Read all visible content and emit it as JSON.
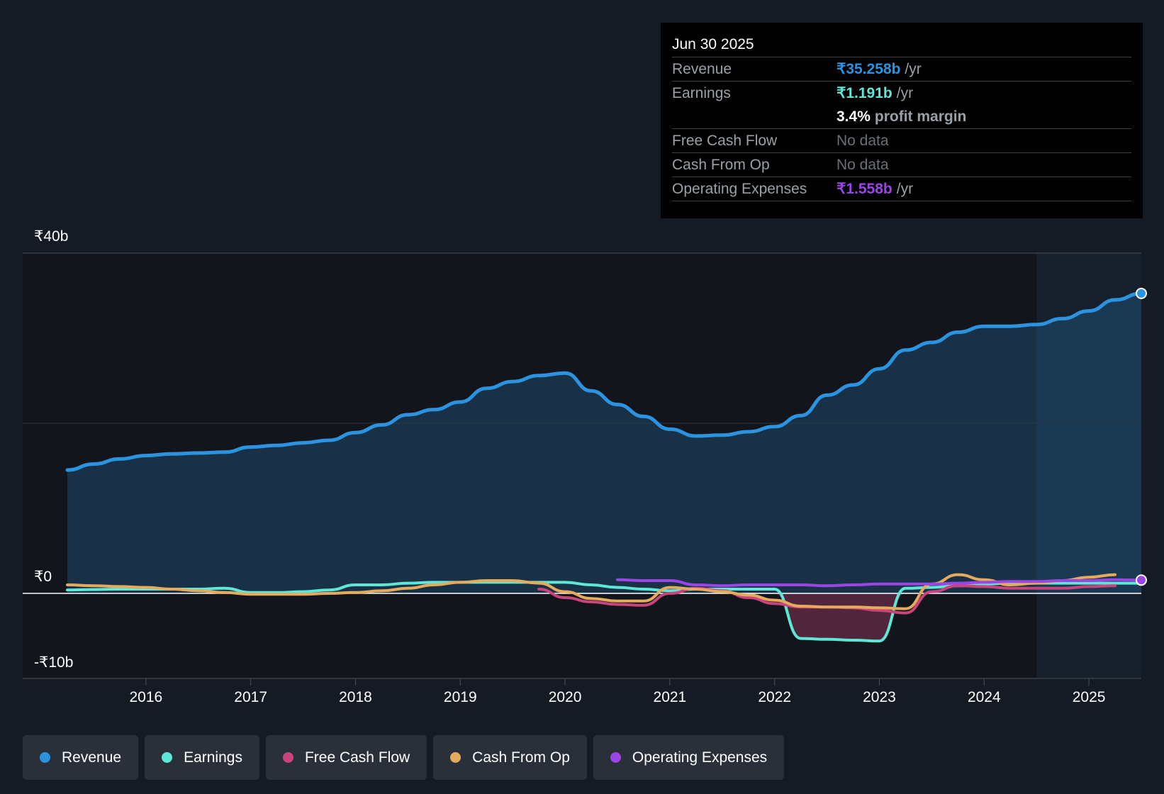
{
  "tooltip": {
    "date": "Jun 30 2025",
    "revenue_label": "Revenue",
    "revenue_value": "₹35.258b",
    "revenue_unit": "/yr",
    "earnings_label": "Earnings",
    "earnings_value": "₹1.191b",
    "earnings_unit": "/yr",
    "margin_value": "3.4%",
    "margin_text": "profit margin",
    "fcf_label": "Free Cash Flow",
    "fcf_value": "No data",
    "cfo_label": "Cash From Op",
    "cfo_value": "No data",
    "opex_label": "Operating Expenses",
    "opex_value": "₹1.558b",
    "opex_unit": "/yr"
  },
  "legend": [
    {
      "label": "Revenue",
      "color": "#2c93e0"
    },
    {
      "label": "Earnings",
      "color": "#5ee7d6"
    },
    {
      "label": "Free Cash Flow",
      "color": "#c9447c"
    },
    {
      "label": "Cash From Op",
      "color": "#e6aa5c"
    },
    {
      "label": "Operating Expenses",
      "color": "#9b45e6"
    }
  ],
  "chart_data": {
    "type": "line",
    "title": "",
    "xlabel": "",
    "ylabel": "",
    "ylim": [
      -10,
      40
    ],
    "xlim": [
      2015.25,
      2025.5
    ],
    "y_axis_labels": [
      "₹40b",
      "₹0",
      "-₹10b"
    ],
    "y_axis_values": [
      40,
      0,
      -10
    ],
    "x_ticks": [
      "2016",
      "2017",
      "2018",
      "2019",
      "2020",
      "2021",
      "2022",
      "2023",
      "2024",
      "2025"
    ],
    "x_tick_values": [
      2016,
      2017,
      2018,
      2019,
      2020,
      2021,
      2022,
      2023,
      2024,
      2025
    ],
    "forecast_start": 2024.5,
    "series": [
      {
        "name": "Revenue",
        "color": "#2c93e0",
        "x": [
          2015.25,
          2015.5,
          2015.75,
          2016.0,
          2016.25,
          2016.5,
          2016.75,
          2017.0,
          2017.25,
          2017.5,
          2017.75,
          2018.0,
          2018.25,
          2018.5,
          2018.75,
          2019.0,
          2019.25,
          2019.5,
          2019.75,
          2020.0,
          2020.25,
          2020.5,
          2020.75,
          2021.0,
          2021.25,
          2021.5,
          2021.75,
          2022.0,
          2022.25,
          2022.5,
          2022.75,
          2023.0,
          2023.25,
          2023.5,
          2023.75,
          2024.0,
          2024.25,
          2024.5,
          2024.75,
          2025.0,
          2025.25,
          2025.5
        ],
        "values": [
          14.5,
          15.2,
          15.8,
          16.2,
          16.4,
          16.5,
          16.6,
          17.2,
          17.4,
          17.7,
          18.0,
          18.9,
          19.8,
          21.0,
          21.6,
          22.5,
          24.1,
          24.9,
          25.6,
          25.9,
          23.8,
          22.2,
          20.8,
          19.3,
          18.5,
          18.6,
          19.0,
          19.6,
          20.9,
          23.3,
          24.5,
          26.4,
          28.6,
          29.5,
          30.7,
          31.4,
          31.4,
          31.6,
          32.3,
          33.2,
          34.5,
          35.258
        ]
      },
      {
        "name": "Earnings",
        "color": "#5ee7d6",
        "x": [
          2015.25,
          2015.5,
          2015.75,
          2016.0,
          2016.25,
          2016.5,
          2016.75,
          2017.0,
          2017.25,
          2017.5,
          2017.75,
          2018.0,
          2018.25,
          2018.5,
          2018.75,
          2019.0,
          2019.25,
          2019.5,
          2019.75,
          2020.0,
          2020.25,
          2020.5,
          2020.75,
          2021.0,
          2021.25,
          2021.5,
          2021.75,
          2022.0,
          2022.25,
          2022.5,
          2022.75,
          2023.0,
          2023.25,
          2023.5,
          2023.75,
          2024.0,
          2024.25,
          2024.5,
          2024.75,
          2025.0,
          2025.25,
          2025.5
        ],
        "values": [
          0.4,
          0.45,
          0.5,
          0.5,
          0.5,
          0.5,
          0.6,
          0.1,
          0.1,
          0.2,
          0.4,
          1.0,
          1.0,
          1.2,
          1.3,
          1.3,
          1.3,
          1.3,
          1.3,
          1.3,
          1.0,
          0.7,
          0.5,
          0.3,
          0.5,
          0.5,
          0.5,
          0.5,
          -5.3,
          -5.4,
          -5.5,
          -5.6,
          0.6,
          0.7,
          0.9,
          1.1,
          1.2,
          1.2,
          1.2,
          1.2,
          1.2,
          1.191
        ]
      },
      {
        "name": "Free Cash Flow",
        "color": "#c9447c",
        "x": [
          2019.75,
          2020.0,
          2020.25,
          2020.5,
          2020.75,
          2021.0,
          2021.25,
          2021.5,
          2021.75,
          2022.0,
          2022.25,
          2022.5,
          2022.75,
          2023.0,
          2023.25,
          2023.5,
          2023.75,
          2024.0,
          2024.25,
          2024.5,
          2024.75,
          2025.0,
          2025.25
        ],
        "values": [
          0.5,
          -0.5,
          -1.0,
          -1.3,
          -1.4,
          0.0,
          0.6,
          0.3,
          -0.5,
          -1.2,
          -1.6,
          -1.6,
          -1.7,
          -2.0,
          -2.3,
          0.2,
          0.9,
          0.8,
          0.6,
          0.6,
          0.6,
          0.8,
          0.9
        ]
      },
      {
        "name": "Cash From Op",
        "color": "#e6aa5c",
        "x": [
          2015.25,
          2015.5,
          2015.75,
          2016.0,
          2016.25,
          2016.5,
          2016.75,
          2017.0,
          2017.25,
          2017.5,
          2017.75,
          2018.0,
          2018.25,
          2018.5,
          2018.75,
          2019.0,
          2019.25,
          2019.5,
          2019.75,
          2020.0,
          2020.25,
          2020.5,
          2020.75,
          2021.0,
          2021.25,
          2021.5,
          2021.75,
          2022.0,
          2022.25,
          2022.5,
          2022.75,
          2023.0,
          2023.25,
          2023.5,
          2023.75,
          2024.0,
          2024.25,
          2024.5,
          2024.75,
          2025.0,
          2025.25
        ],
        "values": [
          1.0,
          0.9,
          0.8,
          0.7,
          0.5,
          0.3,
          0.1,
          -0.1,
          -0.1,
          -0.1,
          0.0,
          0.1,
          0.3,
          0.6,
          1.0,
          1.3,
          1.5,
          1.5,
          1.2,
          0.2,
          -0.6,
          -0.9,
          -0.9,
          0.7,
          0.5,
          0.2,
          -0.2,
          -0.8,
          -1.5,
          -1.6,
          -1.6,
          -1.7,
          -1.8,
          1.1,
          2.2,
          1.6,
          1.0,
          1.2,
          1.5,
          1.9,
          2.2
        ]
      },
      {
        "name": "Operating Expenses",
        "color": "#9b45e6",
        "x": [
          2020.5,
          2020.75,
          2021.0,
          2021.25,
          2021.5,
          2021.75,
          2022.0,
          2022.25,
          2022.5,
          2022.75,
          2023.0,
          2023.25,
          2023.5,
          2023.75,
          2024.0,
          2024.25,
          2024.5,
          2024.75,
          2025.0,
          2025.25,
          2025.5
        ],
        "values": [
          1.6,
          1.5,
          1.5,
          1.0,
          0.9,
          1.0,
          1.0,
          1.0,
          0.9,
          1.0,
          1.1,
          1.1,
          1.1,
          1.2,
          1.3,
          1.4,
          1.4,
          1.5,
          1.5,
          1.6,
          1.558
        ]
      }
    ]
  }
}
